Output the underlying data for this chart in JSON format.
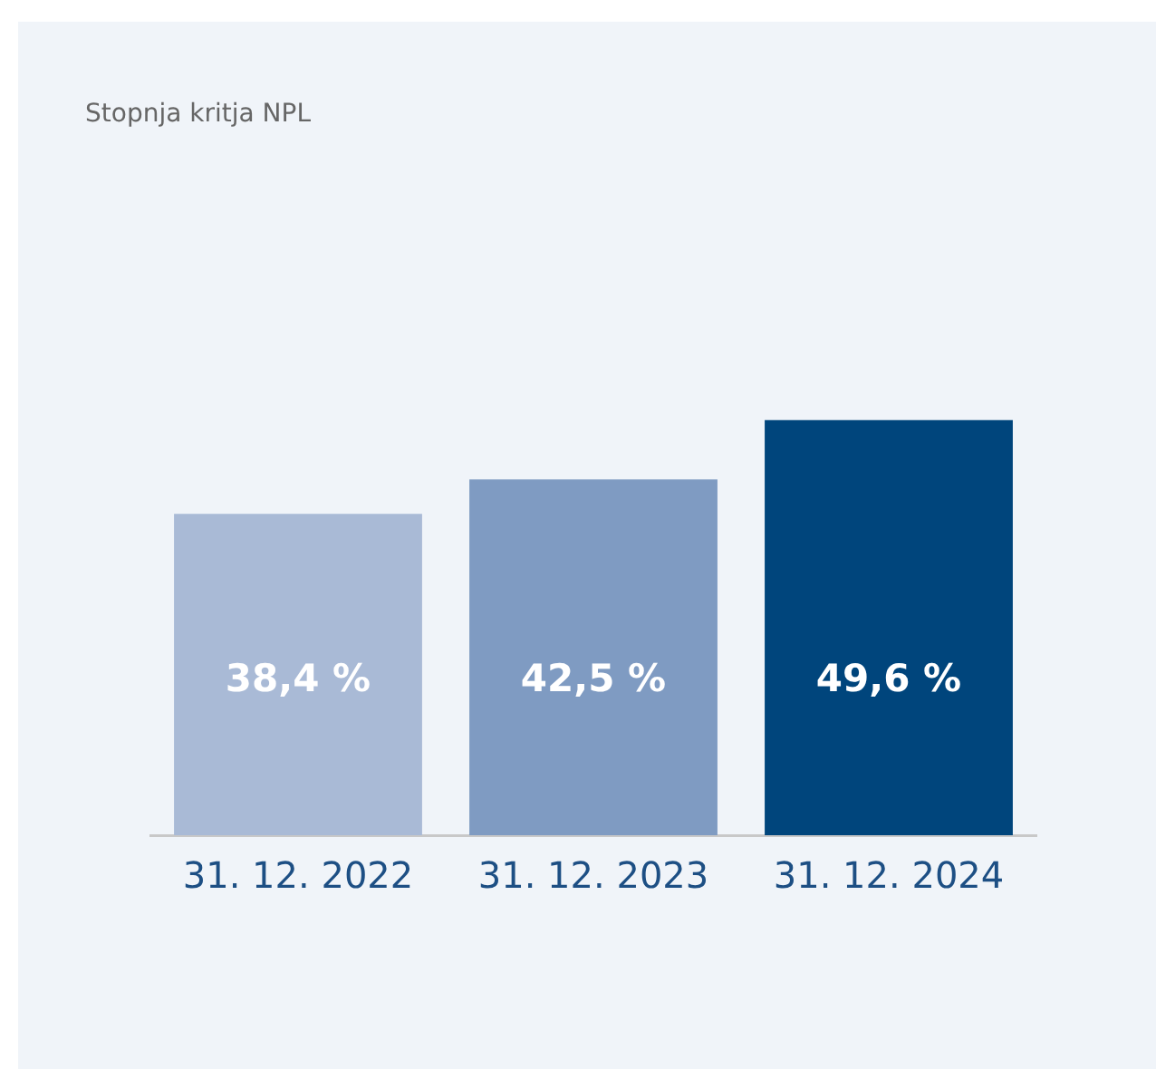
{
  "chart_data": {
    "type": "bar",
    "title": "Stopnja kritja NPL",
    "categories": [
      "31. 12. 2022",
      "31. 12. 2023",
      "31. 12. 2024"
    ],
    "values": [
      38.4,
      42.5,
      49.6
    ],
    "value_labels": [
      "38,4 %",
      "42,5 %",
      "49,6 %"
    ],
    "colors": [
      "#a9bad6",
      "#7f9bc2",
      "#00457c"
    ],
    "tick_labels": "x"
  }
}
